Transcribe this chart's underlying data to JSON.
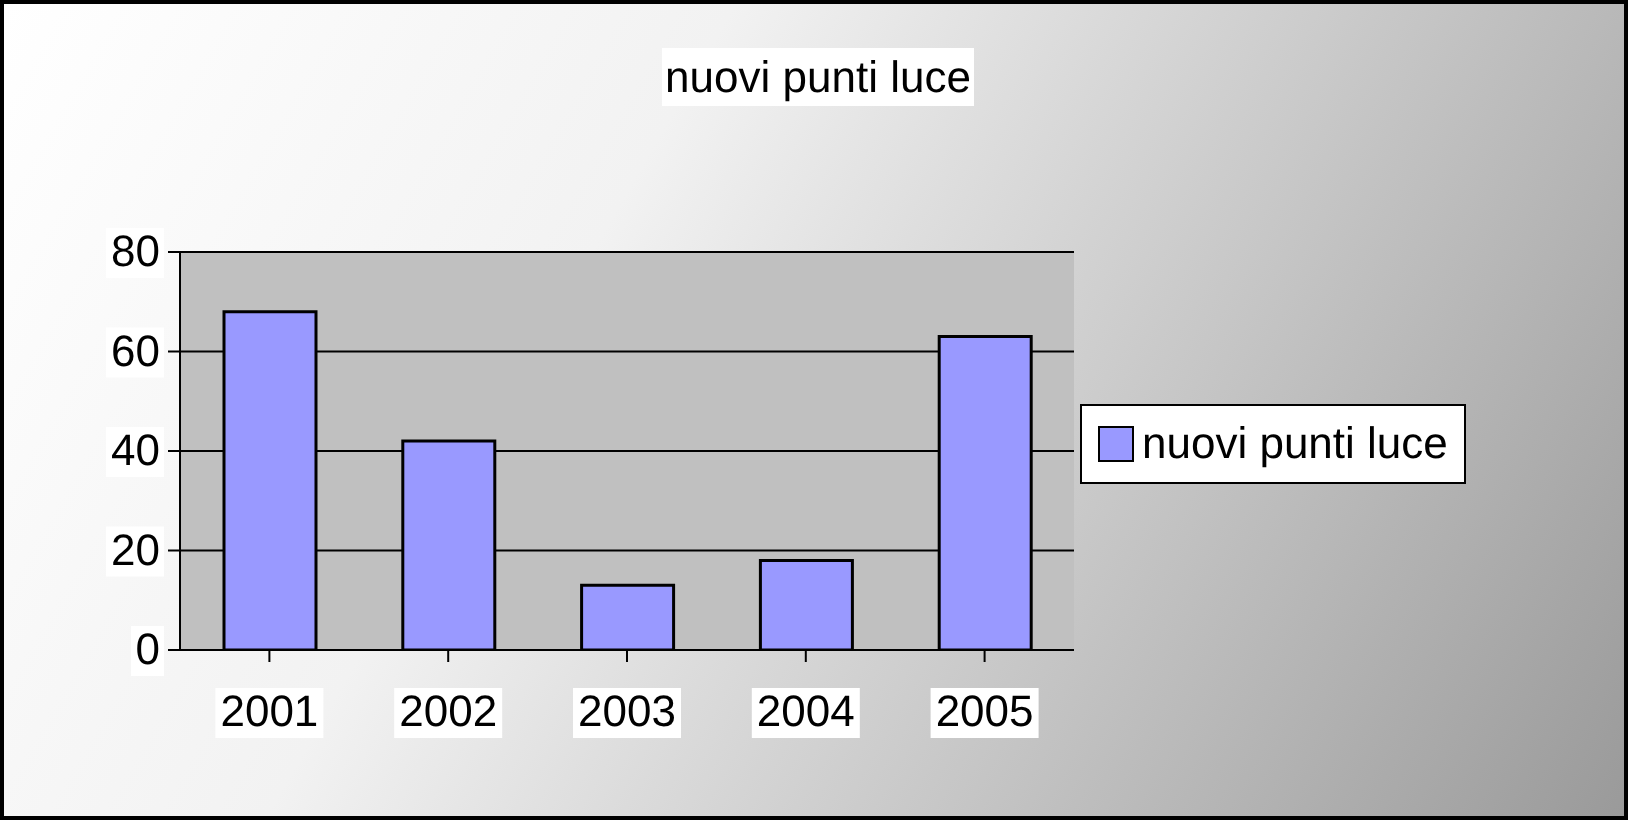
{
  "chart_data": {
    "type": "bar",
    "title": "nuovi punti luce",
    "categories": [
      "2001",
      "2002",
      "2003",
      "2004",
      "2005"
    ],
    "series": [
      {
        "name": "nuovi punti luce",
        "color": "#9999ff",
        "values": [
          68,
          42,
          13,
          18,
          63
        ]
      }
    ],
    "ylim": [
      0,
      80
    ],
    "yticks": [
      0,
      20,
      40,
      60,
      80
    ],
    "grid": "y",
    "legend": "right"
  }
}
